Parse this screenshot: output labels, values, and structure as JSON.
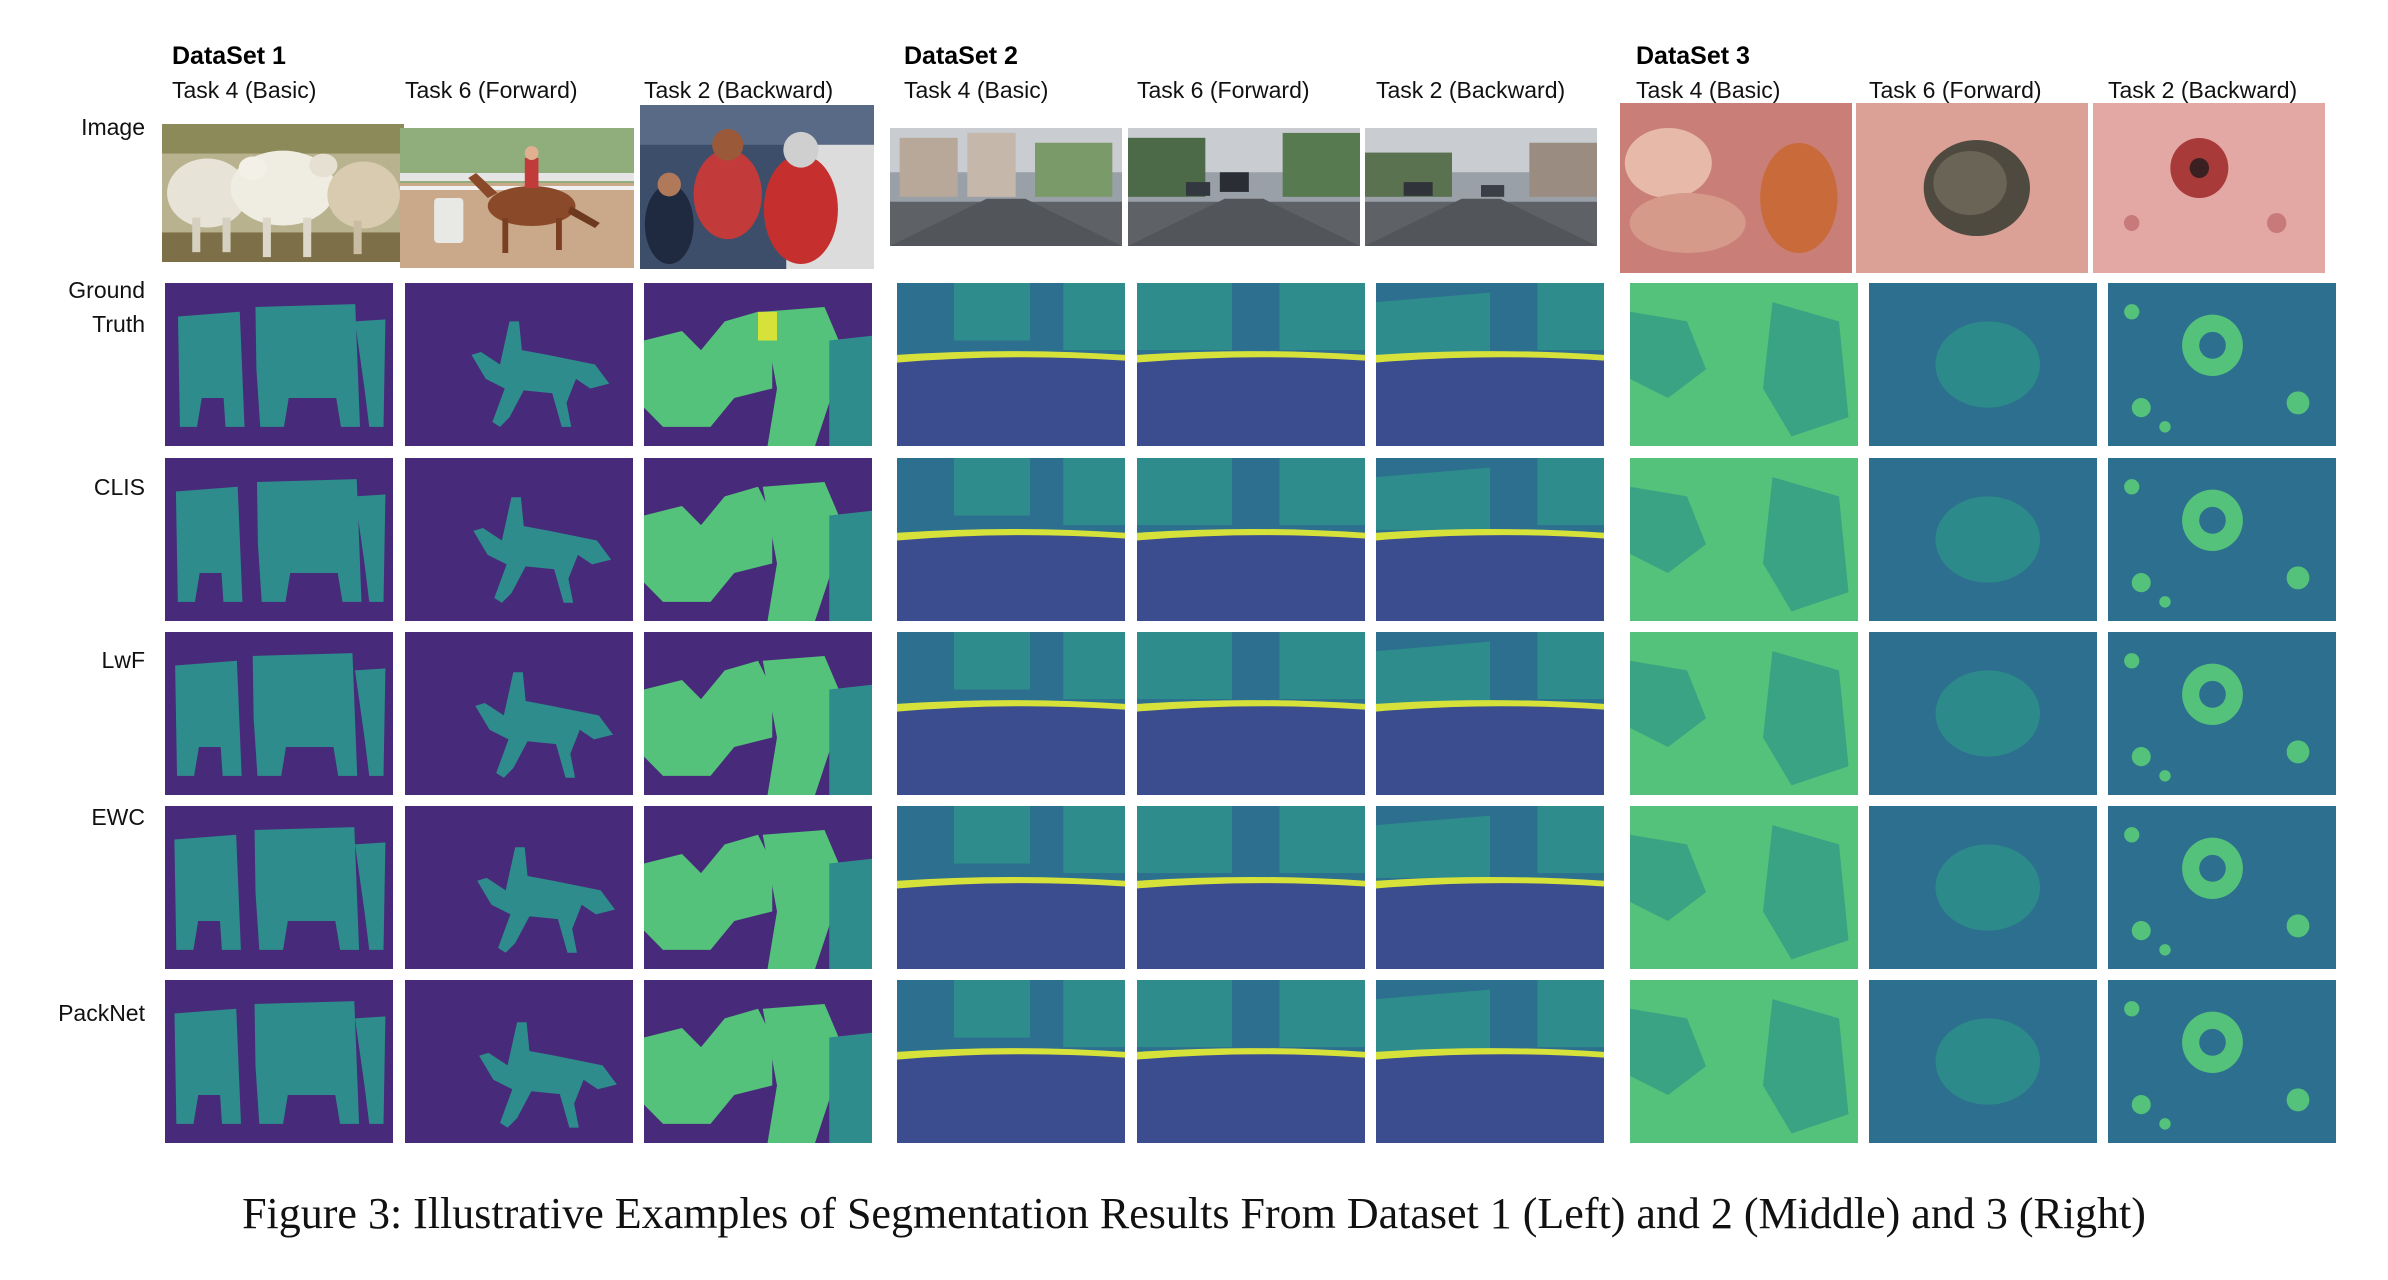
{
  "datasets": [
    {
      "title": "DataSet 1",
      "columns": [
        "Task 4 (Basic)",
        "Task 6 (Forward)",
        "Task 2 (Backward)"
      ]
    },
    {
      "title": "DataSet 2",
      "columns": [
        "Task 4 (Basic)",
        "Task 6 (Forward)",
        "Task 2 (Backward)"
      ]
    },
    {
      "title": "DataSet 3",
      "columns": [
        "Task 4 (Basic)",
        "Task 6 (Forward)",
        "Task 2 (Backward)"
      ]
    }
  ],
  "rows": [
    "Image",
    "Ground\nTruth",
    "CLIS",
    "LwF",
    "EWC",
    "PackNet"
  ],
  "caption": "Figure 3: Illustrative Examples of Segmentation Results From Dataset 1 (Left) and 2 (Middle) and 3 (Right)",
  "colors": {
    "background_purple": "#472b7a",
    "teal": "#2f8c8c",
    "light_green": "#54c27a",
    "yellow": "#d6e23a",
    "road_blue": "#3b4d8f",
    "skin_teal": "#2d6f8e"
  }
}
